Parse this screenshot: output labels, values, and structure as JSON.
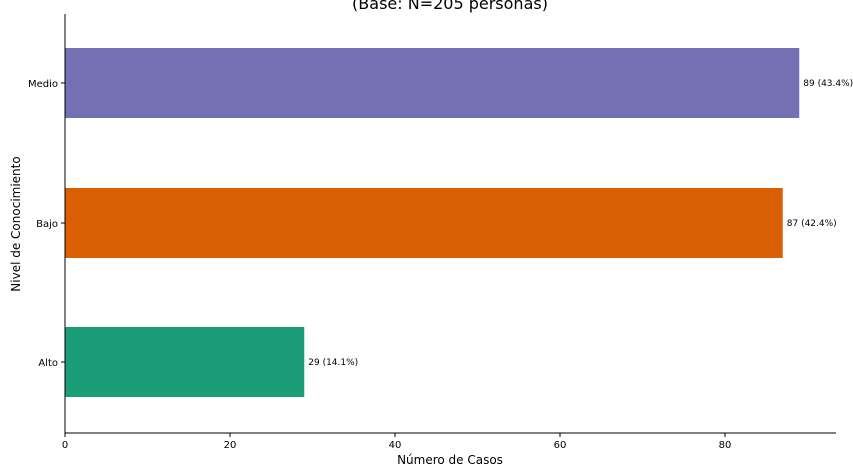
{
  "chart_data": {
    "type": "bar",
    "orientation": "horizontal",
    "title": "(Base: N=205 personas)",
    "xlabel": "Número de Casos",
    "ylabel": "Nivel de Conocimiento",
    "categories": [
      "Medio",
      "Bajo",
      "Alto"
    ],
    "values": [
      89,
      87,
      29
    ],
    "data_labels": [
      "89 (43.4%)",
      "87 (42.4%)",
      "29 (14.1%)"
    ],
    "colors": [
      "#7570b3",
      "#d95f02",
      "#1b9e77"
    ],
    "xlim": [
      0,
      95
    ],
    "xticks": [
      0,
      20,
      40,
      60,
      80
    ],
    "grid": false,
    "legend": "none"
  }
}
